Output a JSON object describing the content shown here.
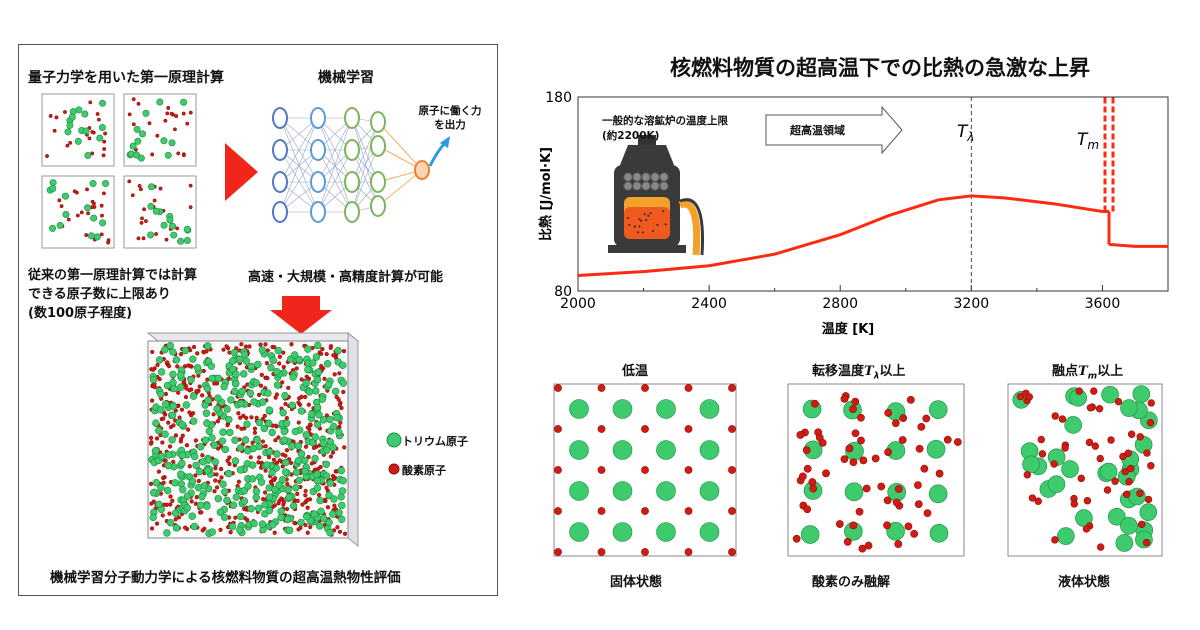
{
  "left": {
    "heading_dft": "量子力学を用いた第一原理計算",
    "heading_ml": "機械学習",
    "nn_output_label_1": "原子に働く力",
    "nn_output_label_2": "を出力",
    "dft_limit_1": "従来の第一原理計算では計算",
    "dft_limit_2": "できる原子数に上限あり",
    "dft_limit_3": "(数100原子程度)",
    "ml_capability": "高速・大規模・高精度計算が可能",
    "legend_thorium": "トリウム原子",
    "legend_oxygen": "酸素原子",
    "caption": "機械学習分子動力学による核燃料物質の超高温熱物性評価"
  },
  "right": {
    "title": "核燃料物質の超高温下での比熱の急激な上昇",
    "furnace_note_1": "一般的な溶鉱炉の温度上限",
    "furnace_note_2": "(約2200K)",
    "arrow_label": "超高温領域",
    "panels": [
      {
        "top": "低温",
        "bottom": "固体状態"
      },
      {
        "top_prefix": "転移温度",
        "top_symbol": "T",
        "top_sub": "λ",
        "top_suffix": "以上",
        "bottom": "酸素のみ融解"
      },
      {
        "top_prefix": "融点",
        "top_symbol": "T",
        "top_sub": "m",
        "top_suffix": "以上",
        "bottom": "液体状態"
      }
    ]
  },
  "colors": {
    "curve": "#ff2a10",
    "thorium": "#3ecb6e",
    "oxygen": "#d21b12",
    "accent_red": "#f0251b"
  },
  "chart_data": {
    "type": "line",
    "xlabel": "温度 [K]",
    "ylabel": "比熱 [J/mol·K]",
    "xlim": [
      2000,
      3800
    ],
    "ylim": [
      80,
      180
    ],
    "xticks": [
      "2000",
      "2400",
      "2800",
      "3200",
      "3600"
    ],
    "yticks": [
      "80",
      "180"
    ],
    "series": [
      {
        "x": [
          2000,
          2200,
          2400,
          2600,
          2800,
          2950,
          3100,
          3200,
          3300,
          3450,
          3600
        ],
        "values": [
          88,
          90,
          93,
          99,
          109,
          119,
          127,
          129,
          128,
          125,
          121
        ]
      },
      {
        "x": [
          3620,
          3700,
          3800
        ],
        "values": [
          104,
          103,
          103
        ]
      }
    ],
    "melt_jump": {
      "x": 3620,
      "from": 121,
      "to": 180
    },
    "vlines": [
      3200
    ],
    "annotations": [
      {
        "symbol": "T",
        "sub": "λ",
        "x": 3200
      },
      {
        "symbol": "T",
        "sub": "m",
        "x": 3620
      }
    ]
  }
}
